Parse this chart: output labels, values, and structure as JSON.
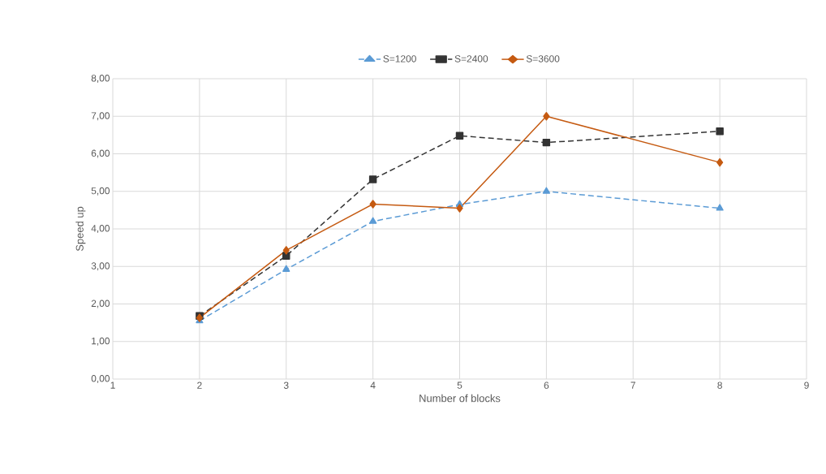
{
  "chart_data": {
    "type": "line",
    "xlabel": "Number of blocks",
    "ylabel": "Speed up",
    "x": [
      2,
      3,
      4,
      5,
      6,
      8
    ],
    "series": [
      {
        "name": "S=1200",
        "color": "#5b9bd5",
        "values": [
          1.55,
          2.92,
          4.2,
          4.65,
          5.0,
          4.55
        ],
        "marker": "triangle",
        "line_style": "dashed"
      },
      {
        "name": "S=2400",
        "color": "#333333",
        "values": [
          1.68,
          3.28,
          5.32,
          6.48,
          6.3,
          6.6
        ],
        "marker": "square",
        "line_style": "dashed"
      },
      {
        "name": "S=3600",
        "color": "#c55a11",
        "values": [
          1.63,
          3.43,
          4.66,
          4.55,
          7.0,
          5.77
        ],
        "marker": "diamond",
        "line_style": "solid"
      }
    ],
    "xlim": [
      1,
      9
    ],
    "xticks": [
      1,
      2,
      3,
      4,
      5,
      6,
      7,
      8,
      9
    ],
    "ylim": [
      0,
      8
    ],
    "yticks": [
      {
        "value": 0,
        "label": "0,00"
      },
      {
        "value": 1,
        "label": "1,00"
      },
      {
        "value": 2,
        "label": "2,00"
      },
      {
        "value": 3,
        "label": "3,00"
      },
      {
        "value": 4,
        "label": "4,00"
      },
      {
        "value": 5,
        "label": "5,00"
      },
      {
        "value": 6,
        "label": "6,00"
      },
      {
        "value": 7,
        "label": "7,00"
      },
      {
        "value": 8,
        "label": "8,00"
      }
    ],
    "grid": true,
    "legend": "top"
  }
}
